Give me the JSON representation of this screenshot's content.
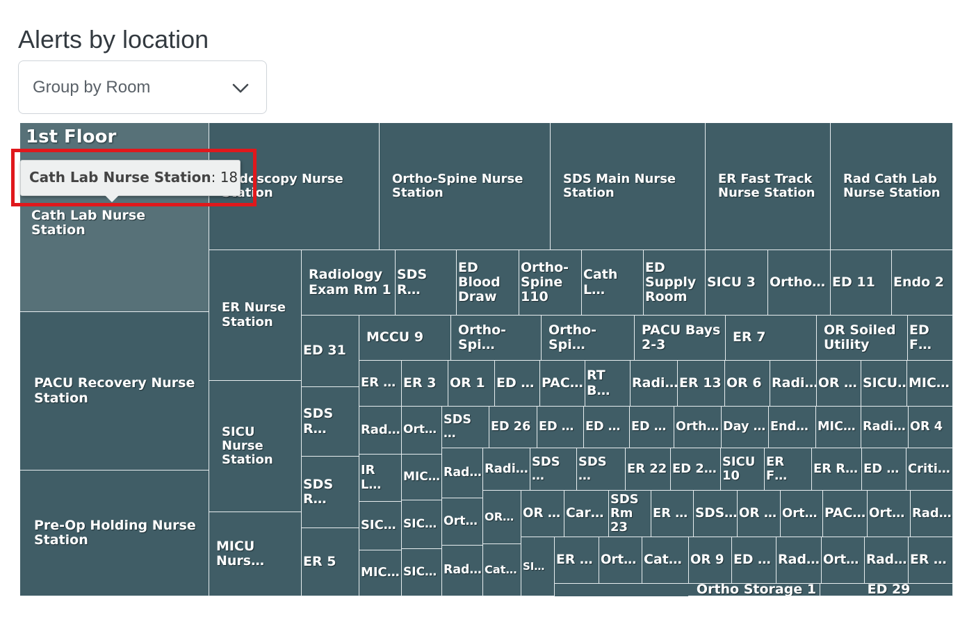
{
  "page": {
    "title": "Alerts by location"
  },
  "group_select": {
    "selected": "Group by Room",
    "icon": "chevron-down-icon"
  },
  "treemap": {
    "group_label": "1st Floor",
    "tooltip": {
      "label": "Cath Lab Nurse Station",
      "value": "18"
    },
    "cells": [
      {
        "label": "Cath Lab Nurse Station"
      },
      {
        "label": "PACU Recovery Nurse Station"
      },
      {
        "label": "Pre-Op Holding Nurse Station"
      },
      {
        "label": "Endoscopy Nurse Station"
      },
      {
        "label": "Ortho-Spine Nurse Station"
      },
      {
        "label": "SDS Main Nurse Station"
      },
      {
        "label": "ER Fast Track Nurse Station"
      },
      {
        "label": "Rad Cath Lab Nurse Station"
      },
      {
        "label": "ER Nurse Station"
      },
      {
        "label": "SICU Nurse Station"
      },
      {
        "label": "MICU Nurs…"
      },
      {
        "label": "Radiology Exam Rm 1"
      },
      {
        "label": "ED 31"
      },
      {
        "label": "SDS R…"
      },
      {
        "label": "SDS R…"
      },
      {
        "label": "ER 5"
      },
      {
        "label": "SDS R…"
      },
      {
        "label": "ED Blood Draw"
      },
      {
        "label": "Ortho-Spine 110"
      },
      {
        "label": "Cath L…"
      },
      {
        "label": "ED Supply Room"
      },
      {
        "label": "SICU 3"
      },
      {
        "label": "Ortho…"
      },
      {
        "label": "ED 11"
      },
      {
        "label": "Endo 2"
      },
      {
        "label": "MCCU 9"
      },
      {
        "label": "Ortho-Spi…"
      },
      {
        "label": "Ortho-Spi…"
      },
      {
        "label": "PACU Bays 2-3"
      },
      {
        "label": "ER 7"
      },
      {
        "label": "OR Soiled Utility"
      },
      {
        "label": "ED F…"
      },
      {
        "label": "ER …"
      },
      {
        "label": "ER 3"
      },
      {
        "label": "OR 1"
      },
      {
        "label": "ED …"
      },
      {
        "label": "PAC…"
      },
      {
        "label": "RT B…"
      },
      {
        "label": "Radi…"
      },
      {
        "label": "ER 13"
      },
      {
        "label": "OR 6"
      },
      {
        "label": "Radi…"
      },
      {
        "label": "OR …"
      },
      {
        "label": "SICU…"
      },
      {
        "label": "MIC…"
      },
      {
        "label": "Rad…"
      },
      {
        "label": "Ort…"
      },
      {
        "label": "SDS …"
      },
      {
        "label": "ED 26"
      },
      {
        "label": "ED …"
      },
      {
        "label": "ED …"
      },
      {
        "label": "ED …"
      },
      {
        "label": "Orth…"
      },
      {
        "label": "Day …"
      },
      {
        "label": "End…"
      },
      {
        "label": "MIC…"
      },
      {
        "label": "Radi…"
      },
      {
        "label": "OR 4"
      },
      {
        "label": "IR L…"
      },
      {
        "label": "MIC…"
      },
      {
        "label": "Rad…"
      },
      {
        "label": "Radi…"
      },
      {
        "label": "SDS …"
      },
      {
        "label": "SDS …"
      },
      {
        "label": "ER 22"
      },
      {
        "label": "ED 2…"
      },
      {
        "label": "SICU 10"
      },
      {
        "label": "ER F…"
      },
      {
        "label": "ER R…"
      },
      {
        "label": "ED …"
      },
      {
        "label": "Criti…"
      },
      {
        "label": "SIC…"
      },
      {
        "label": "SIC…"
      },
      {
        "label": "Ort…"
      },
      {
        "label": "OR…"
      },
      {
        "label": "OR …"
      },
      {
        "label": "Car…"
      },
      {
        "label": "SDS Rm 23"
      },
      {
        "label": "ER …"
      },
      {
        "label": "SDS…"
      },
      {
        "label": "OR …"
      },
      {
        "label": "Ort…"
      },
      {
        "label": "PAC…"
      },
      {
        "label": "Ort…"
      },
      {
        "label": "Rad…"
      },
      {
        "label": "MIC…"
      },
      {
        "label": "SIC…"
      },
      {
        "label": "Rad…"
      },
      {
        "label": "Cat…"
      },
      {
        "label": "SI…"
      },
      {
        "label": "ER …"
      },
      {
        "label": "Ort…"
      },
      {
        "label": "Cat…"
      },
      {
        "label": "OR 9"
      },
      {
        "label": "ED …"
      },
      {
        "label": "Rad…"
      },
      {
        "label": "Ort…"
      },
      {
        "label": "Rad…"
      },
      {
        "label": "ER …"
      },
      {
        "label": "Ortho Storage 1"
      },
      {
        "label": "ED 29"
      }
    ]
  }
}
